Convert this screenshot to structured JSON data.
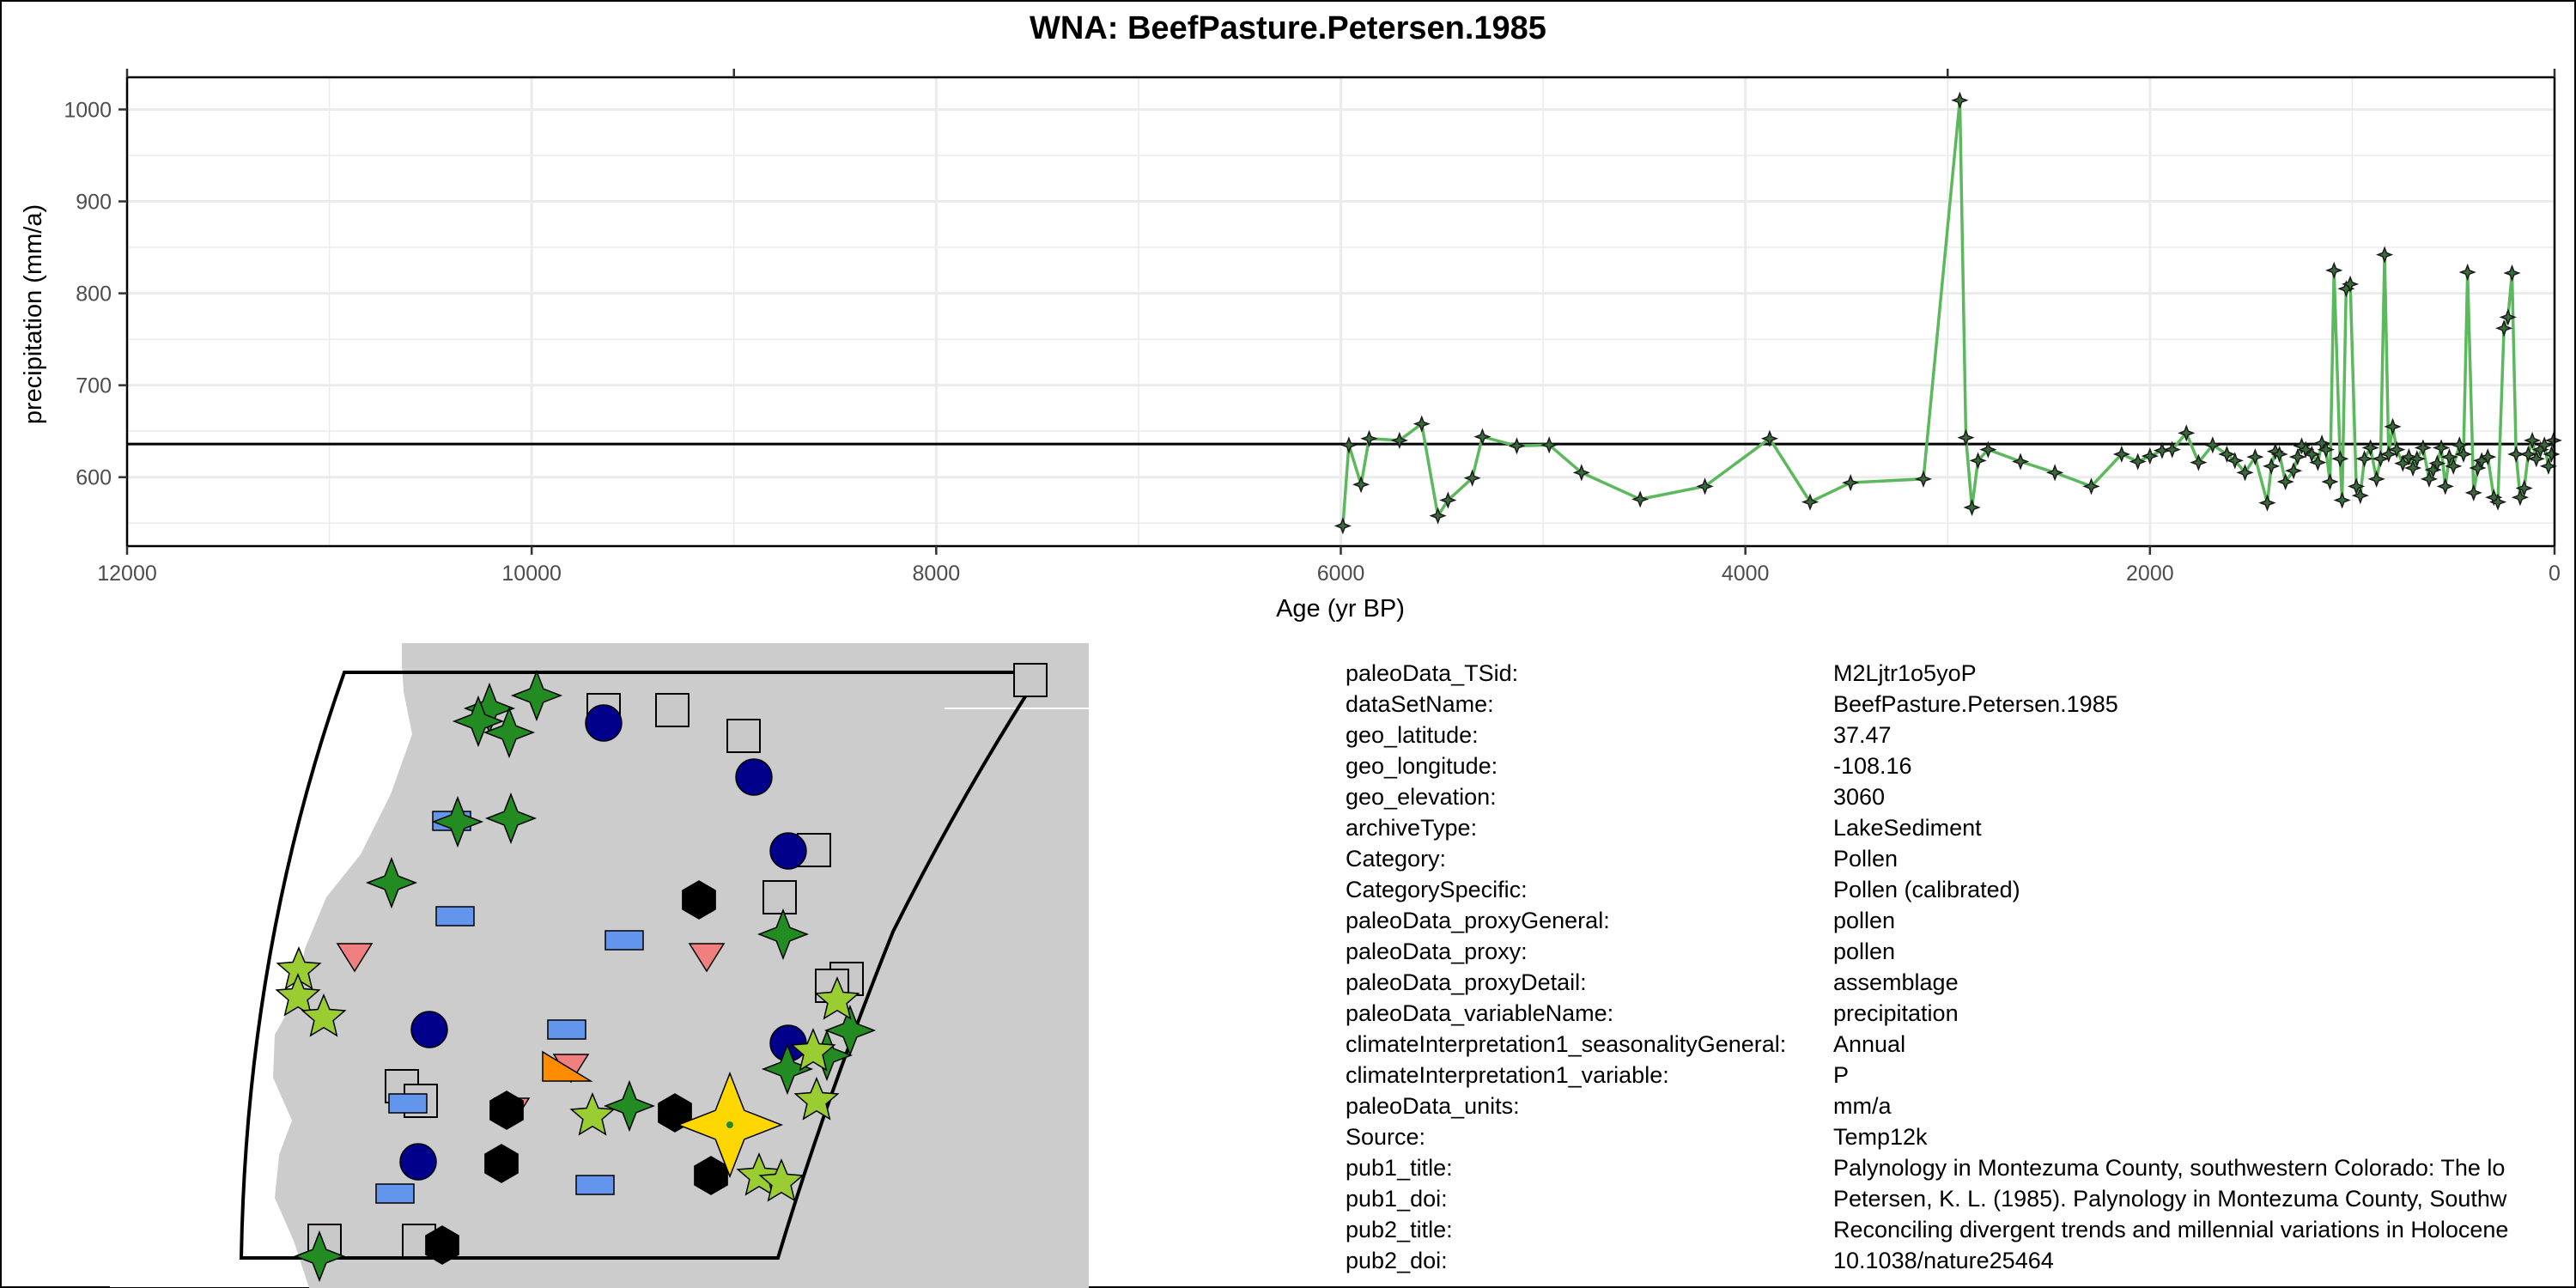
{
  "chart_data": {
    "type": "line",
    "title": "WNA: BeefPasture.Petersen.1985",
    "xlabel": "Age (yr BP)",
    "ylabel": "precipitation (mm/a)",
    "xlim": [
      12000,
      0
    ],
    "ylim": [
      525,
      1035
    ],
    "x_ticks": [
      12000,
      10000,
      8000,
      6000,
      4000,
      2000,
      0
    ],
    "y_ticks": [
      600,
      700,
      800,
      900,
      1000
    ],
    "top_ticks": [
      12000,
      9000,
      3000,
      0
    ],
    "grid": true,
    "reference_line": 636,
    "series": [
      {
        "color": "#5cb85c",
        "marker": "four-point-star",
        "x": [
          5990,
          5960,
          5900,
          5860,
          5710,
          5600,
          5520,
          5470,
          5350,
          5300,
          5130,
          4970,
          4810,
          4520,
          4200,
          3880,
          3680,
          3480,
          3120,
          2940,
          2910,
          2880,
          2850,
          2800,
          2640,
          2470,
          2290,
          2140,
          2060,
          2000,
          1940,
          1890,
          1820,
          1760,
          1690,
          1620,
          1580,
          1530,
          1480,
          1420,
          1400,
          1380,
          1360,
          1330,
          1290,
          1270,
          1250,
          1230,
          1200,
          1170,
          1150,
          1130,
          1110,
          1090,
          1060,
          1050,
          1030,
          1010,
          980,
          960,
          940,
          910,
          880,
          860,
          840,
          820,
          800,
          780,
          750,
          720,
          700,
          680,
          650,
          620,
          600,
          580,
          560,
          540,
          520,
          500,
          470,
          450,
          430,
          400,
          380,
          360,
          330,
          300,
          280,
          250,
          230,
          210,
          190,
          170,
          150,
          130,
          110,
          90,
          70,
          50,
          30,
          15,
          5
        ],
        "y": [
          547,
          635,
          592,
          642,
          640,
          658,
          558,
          575,
          599,
          644,
          634,
          635,
          605,
          576,
          590,
          642,
          573,
          594,
          598,
          1010,
          643,
          567,
          618,
          630,
          617,
          605,
          590,
          625,
          617,
          623,
          629,
          630,
          648,
          616,
          635,
          625,
          618,
          605,
          622,
          572,
          612,
          628,
          625,
          595,
          607,
          622,
          634,
          630,
          625,
          616,
          637,
          630,
          595,
          825,
          620,
          575,
          805,
          810,
          590,
          580,
          620,
          632,
          598,
          620,
          842,
          625,
          655,
          630,
          615,
          622,
          610,
          620,
          632,
          598,
          608,
          615,
          632,
          590,
          622,
          612,
          635,
          625,
          823,
          583,
          610,
          618,
          622,
          578,
          573,
          762,
          774,
          822,
          625,
          578,
          588,
          625,
          640,
          620,
          630,
          635,
          612,
          625,
          640
        ]
      }
    ]
  },
  "metadata": [
    {
      "key": "paleoData_TSid:",
      "value": "M2Ljtr1o5yoP"
    },
    {
      "key": "dataSetName:",
      "value": "BeefPasture.Petersen.1985"
    },
    {
      "key": "geo_latitude:",
      "value": "37.47"
    },
    {
      "key": "geo_longitude:",
      "value": "-108.16"
    },
    {
      "key": "geo_elevation:",
      "value": "3060"
    },
    {
      "key": "archiveType:",
      "value": "LakeSediment"
    },
    {
      "key": "Category:",
      "value": "Pollen"
    },
    {
      "key": "CategorySpecific:",
      "value": "Pollen (calibrated)"
    },
    {
      "key": "paleoData_proxyGeneral:",
      "value": "pollen"
    },
    {
      "key": "paleoData_proxy:",
      "value": "pollen"
    },
    {
      "key": "paleoData_proxyDetail:",
      "value": "assemblage"
    },
    {
      "key": "paleoData_variableName:",
      "value": "precipitation"
    },
    {
      "key": "climateInterpretation1_seasonalityGeneral:",
      "value": "Annual"
    },
    {
      "key": "climateInterpretation1_variable:",
      "value": "P"
    },
    {
      "key": "paleoData_units:",
      "value": "mm/a"
    },
    {
      "key": "Source:",
      "value": "Temp12k"
    },
    {
      "key": "pub1_title:",
      "value": "Palynology in Montezuma County, southwestern Colorado: The lo"
    },
    {
      "key": "pub1_doi:",
      "value": "Petersen, K. L. (1985). Palynology in Montezuma County, Southw"
    },
    {
      "key": "pub2_title:",
      "value": "Reconciling divergent trends and millennial variations in Holocene"
    },
    {
      "key": "pub2_doi:",
      "value": "10.1038/nature25464"
    }
  ],
  "map": {
    "colors": {
      "land": "#cccccc",
      "ocean": "#ffffff",
      "outline": "#000000",
      "pollen_star": "#228b22",
      "circle": "#00008b",
      "square": "#c8c8c8",
      "rectangle": "#6495ed",
      "triangle": "#f08080",
      "hexagon": "#696969",
      "light_star": "#9acd32",
      "orange_triangle": "#ff8c00",
      "highlight": "#ffd700"
    }
  }
}
